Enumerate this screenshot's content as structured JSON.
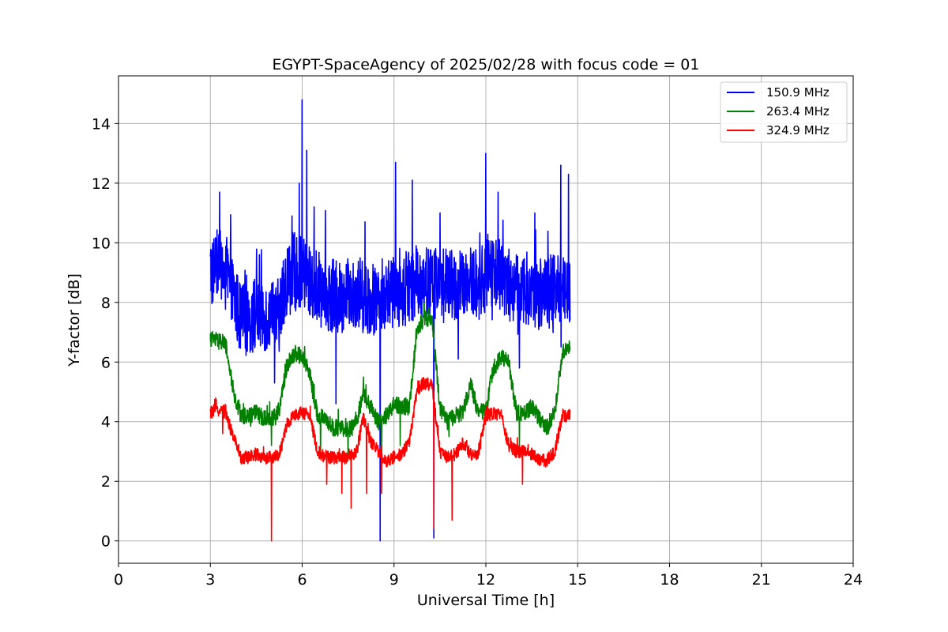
{
  "chart_data": {
    "type": "line",
    "title": "EGYPT-SpaceAgency of 2025/02/28 with focus code = 01",
    "xlabel": "Universal Time [h]",
    "ylabel": "Y-factor [dB]",
    "xlim": [
      0,
      24
    ],
    "ylim": [
      -0.75,
      15.6
    ],
    "xticks": [
      "0",
      "3",
      "6",
      "9",
      "12",
      "15",
      "18",
      "21",
      "24"
    ],
    "yticks": [
      "0",
      "2",
      "4",
      "6",
      "8",
      "10",
      "12",
      "14"
    ],
    "grid": true,
    "legend_position": "top-right",
    "series": [
      {
        "name": "150.9 MHz",
        "color": "#0000ff",
        "x": [
          3.0,
          3.25,
          3.5,
          3.75,
          4.0,
          4.25,
          4.5,
          4.75,
          5.0,
          5.25,
          5.5,
          5.75,
          6.0,
          6.25,
          6.5,
          6.75,
          7.0,
          7.25,
          7.5,
          7.75,
          8.0,
          8.25,
          8.5,
          8.75,
          9.0,
          9.25,
          9.5,
          9.75,
          10.0,
          10.25,
          10.5,
          10.75,
          11.0,
          11.25,
          11.5,
          11.75,
          12.0,
          12.25,
          12.5,
          12.75,
          13.0,
          13.25,
          13.5,
          13.75,
          14.0,
          14.25,
          14.5,
          14.75
        ],
        "y": [
          9.0,
          9.3,
          9.0,
          8.2,
          7.4,
          7.5,
          7.6,
          7.6,
          7.4,
          7.6,
          8.8,
          8.9,
          9.0,
          8.7,
          8.5,
          8.3,
          8.2,
          8.1,
          8.3,
          8.4,
          8.2,
          8.1,
          8.2,
          8.3,
          8.3,
          8.4,
          8.5,
          8.7,
          8.7,
          8.6,
          8.6,
          8.6,
          8.5,
          8.5,
          8.6,
          8.6,
          8.9,
          9.1,
          9.0,
          8.6,
          8.4,
          8.5,
          8.4,
          8.3,
          8.3,
          8.4,
          8.4,
          8.5
        ],
        "spikes": [
          [
            3.3,
            11.7
          ],
          [
            4.6,
            9.6
          ],
          [
            5.1,
            5.3
          ],
          [
            5.9,
            12.0
          ],
          [
            6.0,
            14.8
          ],
          [
            6.15,
            13.1
          ],
          [
            7.1,
            4.6
          ],
          [
            8.05,
            10.7
          ],
          [
            8.55,
            0.0
          ],
          [
            9.05,
            12.7
          ],
          [
            9.6,
            12.1
          ],
          [
            10.3,
            0.1
          ],
          [
            10.5,
            11.0
          ],
          [
            11.1,
            6.1
          ],
          [
            12.0,
            13.0
          ],
          [
            12.4,
            11.7
          ],
          [
            13.1,
            5.8
          ],
          [
            13.6,
            11.0
          ],
          [
            14.45,
            12.6
          ],
          [
            14.7,
            12.3
          ]
        ]
      },
      {
        "name": "263.4 MHz",
        "color": "#008000",
        "x": [
          3.0,
          3.25,
          3.5,
          3.75,
          4.0,
          4.25,
          4.5,
          4.75,
          5.0,
          5.25,
          5.5,
          5.75,
          6.0,
          6.25,
          6.5,
          6.75,
          7.0,
          7.25,
          7.5,
          7.75,
          8.0,
          8.25,
          8.5,
          8.75,
          9.0,
          9.25,
          9.5,
          9.75,
          10.0,
          10.25,
          10.5,
          10.75,
          11.0,
          11.25,
          11.5,
          11.75,
          12.0,
          12.25,
          12.5,
          12.75,
          13.0,
          13.25,
          13.5,
          13.75,
          14.0,
          14.25,
          14.5,
          14.75
        ],
        "y": [
          6.8,
          6.7,
          6.6,
          5.0,
          4.2,
          4.2,
          4.3,
          4.1,
          4.1,
          4.4,
          5.9,
          6.3,
          6.2,
          5.6,
          4.2,
          4.1,
          3.8,
          3.8,
          3.7,
          3.9,
          5.0,
          4.4,
          4.0,
          4.2,
          4.6,
          4.5,
          4.5,
          7.1,
          7.5,
          7.3,
          4.5,
          4.0,
          4.2,
          4.3,
          5.3,
          4.3,
          4.4,
          5.8,
          6.2,
          6.0,
          4.3,
          4.3,
          4.5,
          4.1,
          3.8,
          4.3,
          6.3,
          6.6
        ],
        "spikes": [
          [
            3.7,
            5.5
          ],
          [
            5.0,
            3.2
          ],
          [
            6.6,
            2.8
          ],
          [
            7.5,
            2.7
          ],
          [
            8.6,
            2.8
          ],
          [
            9.2,
            3.2
          ],
          [
            10.8,
            3.5
          ],
          [
            13.1,
            3.2
          ]
        ]
      },
      {
        "name": "324.9 MHz",
        "color": "#ff0000",
        "x": [
          3.0,
          3.25,
          3.5,
          3.75,
          4.0,
          4.25,
          4.5,
          4.75,
          5.0,
          5.25,
          5.5,
          5.75,
          6.0,
          6.25,
          6.5,
          6.75,
          7.0,
          7.25,
          7.5,
          7.75,
          8.0,
          8.25,
          8.5,
          8.75,
          9.0,
          9.25,
          9.5,
          9.75,
          10.0,
          10.25,
          10.5,
          10.75,
          11.0,
          11.25,
          11.5,
          11.75,
          12.0,
          12.25,
          12.5,
          12.75,
          13.0,
          13.25,
          13.5,
          13.75,
          14.0,
          14.25,
          14.5,
          14.75
        ],
        "y": [
          4.3,
          4.4,
          4.3,
          3.5,
          2.8,
          2.8,
          2.9,
          2.8,
          2.8,
          2.9,
          3.9,
          4.2,
          4.3,
          4.2,
          3.0,
          2.8,
          2.8,
          2.8,
          2.8,
          2.9,
          4.1,
          3.3,
          3.0,
          2.7,
          2.8,
          2.9,
          3.3,
          5.1,
          5.3,
          5.2,
          3.0,
          2.8,
          2.9,
          3.3,
          2.9,
          2.9,
          4.2,
          4.3,
          4.2,
          3.2,
          3.0,
          3.0,
          2.9,
          2.7,
          2.7,
          3.0,
          4.2,
          4.2
        ],
        "spikes": [
          [
            3.4,
            3.6
          ],
          [
            5.0,
            0.0
          ],
          [
            6.8,
            1.9
          ],
          [
            7.3,
            1.6
          ],
          [
            7.6,
            1.1
          ],
          [
            8.1,
            1.6
          ],
          [
            8.6,
            1.6
          ],
          [
            10.3,
            0.4
          ],
          [
            10.9,
            0.7
          ],
          [
            13.2,
            1.9
          ]
        ]
      }
    ]
  }
}
